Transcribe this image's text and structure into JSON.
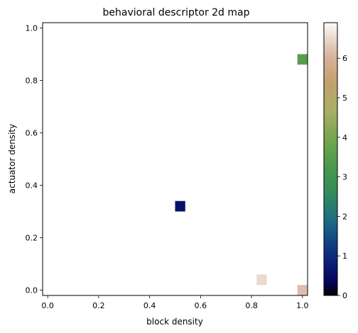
{
  "chart_data": {
    "type": "heatmap",
    "title": "behavioral descriptor 2d map",
    "xlabel": "block density",
    "ylabel": "actuator density",
    "xlim": [
      -0.02,
      1.02
    ],
    "ylim": [
      -0.02,
      1.02
    ],
    "xticks": [
      0.0,
      0.2,
      0.4,
      0.6,
      0.8,
      1.0
    ],
    "xtick_labels": [
      "0.0",
      "0.2",
      "0.4",
      "0.6",
      "0.8",
      "1.0"
    ],
    "yticks": [
      0.0,
      0.2,
      0.4,
      0.6,
      0.8,
      1.0
    ],
    "ytick_labels": [
      "0.0",
      "0.2",
      "0.4",
      "0.6",
      "0.8",
      "1.0"
    ],
    "cell_size": 0.04,
    "cells": [
      {
        "x": 0.52,
        "y": 0.32,
        "value": 0.6
      },
      {
        "x": 1.0,
        "y": 0.88,
        "value": 3.5
      },
      {
        "x": 0.84,
        "y": 0.04,
        "value": 6.5
      },
      {
        "x": 1.0,
        "y": 0.0,
        "value": 6.2
      }
    ],
    "colorbar": {
      "colormap": "gist_earth",
      "vmin": 0,
      "vmax": 6.9,
      "ticks": [
        0,
        1,
        2,
        3,
        4,
        5,
        6
      ],
      "tick_labels": [
        "0",
        "1",
        "2",
        "3",
        "4",
        "5",
        "6"
      ]
    },
    "grid": false
  }
}
